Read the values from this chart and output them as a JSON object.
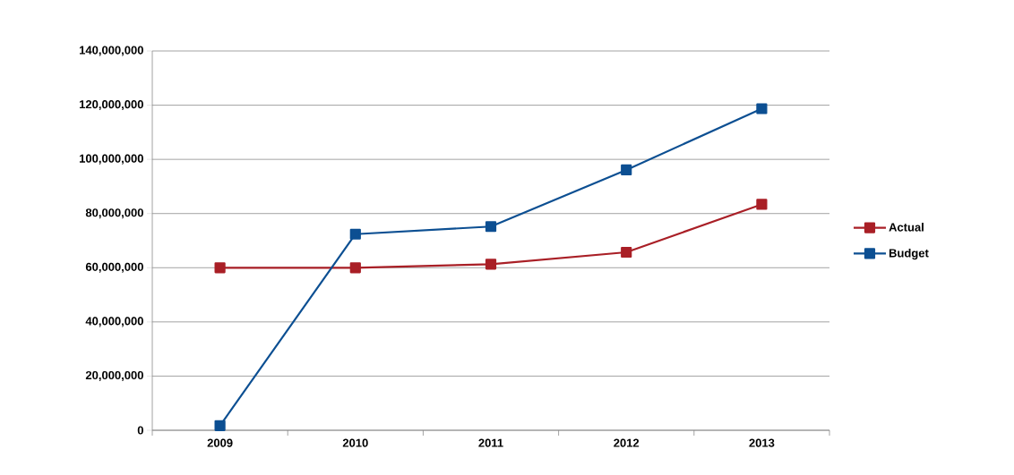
{
  "chart_data": {
    "type": "line",
    "categories": [
      "2009",
      "2010",
      "2011",
      "2012",
      "2013"
    ],
    "series": [
      {
        "name": "Actual",
        "color": "#a91f26",
        "values": [
          60000000,
          60000000,
          61300000,
          65700000,
          83400000
        ]
      },
      {
        "name": "Budget",
        "color": "#0c4f92",
        "values": [
          1700000,
          72400000,
          75200000,
          96100000,
          118700000
        ]
      }
    ],
    "ylim": [
      0,
      140000000
    ],
    "yticks": [
      {
        "value": 0,
        "label": "0"
      },
      {
        "value": 20000000,
        "label": "20,000,000"
      },
      {
        "value": 40000000,
        "label": "40,000,000"
      },
      {
        "value": 60000000,
        "label": "60,000,000"
      },
      {
        "value": 80000000,
        "label": "80,000,000"
      },
      {
        "value": 100000000,
        "label": "100,000,000"
      },
      {
        "value": 120000000,
        "label": "120,000,000"
      },
      {
        "value": 140000000,
        "label": "140,000,000"
      }
    ],
    "grid": "y",
    "legend": "right",
    "marker": "square",
    "line_style": "solid"
  }
}
